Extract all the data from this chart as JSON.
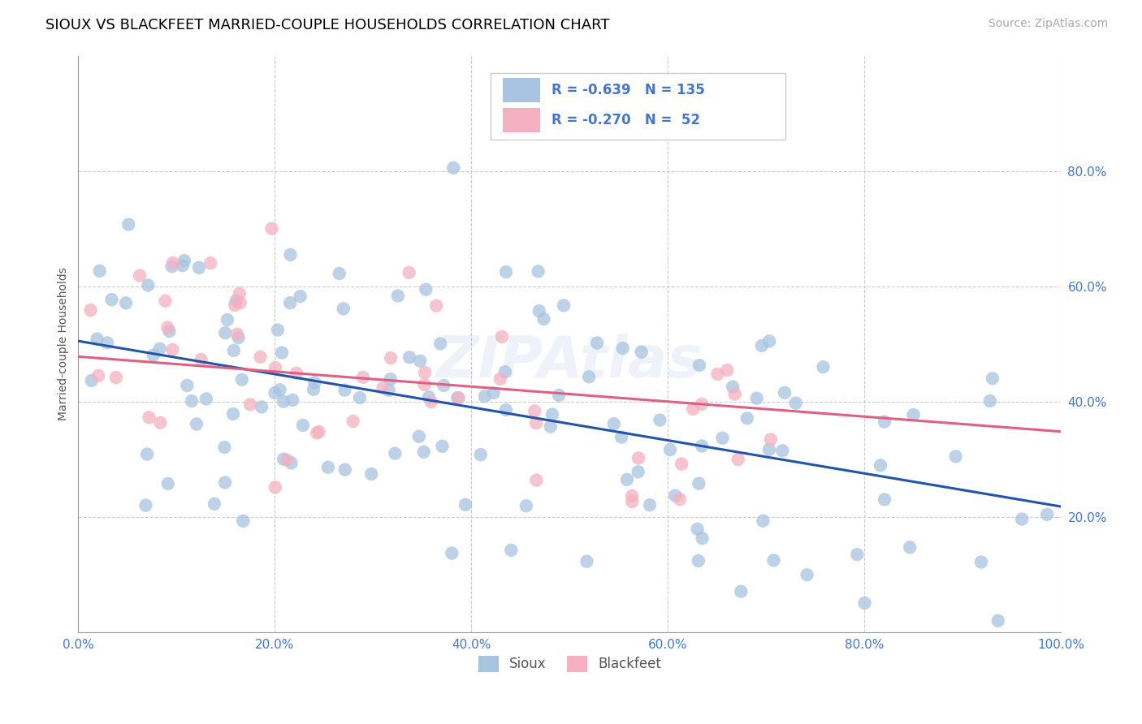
{
  "title": "SIOUX VS BLACKFEET MARRIED-COUPLE HOUSEHOLDS CORRELATION CHART",
  "source": "Source: ZipAtlas.com",
  "ylabel": "Married-couple Households",
  "sioux_R": -0.639,
  "sioux_N": 135,
  "blackfeet_R": -0.27,
  "blackfeet_N": 52,
  "sioux_color": "#a8c4e0",
  "sioux_line_color": "#2255aa",
  "blackfeet_color": "#f4b0c0",
  "blackfeet_line_color": "#e06080",
  "watermark": "ZIPAtlas",
  "xlim": [
    0.0,
    1.0
  ],
  "ylim": [
    0.0,
    1.0
  ],
  "xtick_positions": [
    0.0,
    0.2,
    0.4,
    0.6,
    0.8,
    1.0
  ],
  "xtick_labels": [
    "0.0%",
    "20.0%",
    "40.0%",
    "60.0%",
    "80.0%",
    "100.0%"
  ],
  "ytick_positions": [
    0.2,
    0.4,
    0.6,
    0.8
  ],
  "ytick_labels": [
    "20.0%",
    "40.0%",
    "60.0%",
    "80.0%"
  ],
  "grid_color": "#cccccc",
  "background_color": "#ffffff",
  "title_fontsize": 13,
  "label_fontsize": 10,
  "tick_fontsize": 11,
  "source_fontsize": 10,
  "tick_color": "#4477cc",
  "sioux_line_y0": 0.505,
  "sioux_line_y1": 0.218,
  "blackfeet_line_y0": 0.478,
  "blackfeet_line_y1": 0.348
}
